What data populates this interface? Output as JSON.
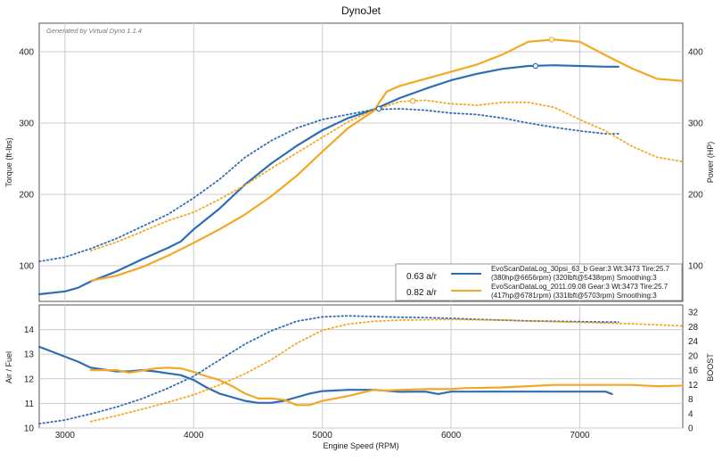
{
  "chart_data": {
    "type": "line",
    "title": "DynoJet",
    "watermark": "Generated by Virtual Dyno 1.1.4",
    "xlabel": "Engine Speed (RPM)",
    "xlim": [
      2800,
      7800
    ],
    "x_ticks": [
      3000,
      4000,
      5000,
      6000,
      7000
    ],
    "colors": {
      "blue": "#2e6db4",
      "orange": "#f3a823",
      "grid": "#cccccc"
    },
    "top_panel": {
      "ylabel_left": "Torque (ft-lbs)",
      "ylabel_right": "Power (HP)",
      "ylim": [
        50,
        440
      ],
      "y_ticks": [
        100,
        200,
        300,
        400
      ],
      "ar_labels": [
        "0.63 a/r",
        "0.82 a/r"
      ],
      "legend": [
        {
          "line1": "EvoScanDataLog_30psi_63_b Gear:3 Wt:3473 Tire:25.7",
          "line2": "(380hp@6656rpm) (320lbft@5438rpm) Smoothing:3",
          "color": "blue"
        },
        {
          "line1": "EvoScanDataLog_2011.09.08 Gear:3 Wt:3473 Tire:25.7",
          "line2": "(417hp@6781rpm) (331lbft@5703rpm) Smoothing:3",
          "color": "orange"
        }
      ],
      "series": [
        {
          "name": "Power 0.63 a/r",
          "color": "blue",
          "dash": false,
          "x": [
            2800,
            3000,
            3100,
            3200,
            3400,
            3600,
            3800,
            3900,
            4000,
            4200,
            4400,
            4600,
            4800,
            5000,
            5200,
            5400,
            5600,
            5800,
            6000,
            6200,
            6400,
            6600,
            6800,
            7000,
            7200,
            7300
          ],
          "y": [
            60,
            64,
            69,
            78,
            92,
            109,
            125,
            134,
            151,
            180,
            214,
            243,
            268,
            290,
            307,
            319,
            335,
            348,
            360,
            369,
            376,
            380,
            381,
            380,
            379,
            379
          ]
        },
        {
          "name": "Power 0.82 a/r",
          "color": "orange",
          "dash": false,
          "x": [
            3200,
            3400,
            3600,
            3800,
            4000,
            4200,
            4400,
            4600,
            4800,
            5000,
            5200,
            5400,
            5450,
            5500,
            5600,
            5800,
            6000,
            6200,
            6400,
            6600,
            6800,
            7000,
            7200,
            7400,
            7600,
            7800
          ],
          "y": [
            79,
            86,
            98,
            114,
            132,
            151,
            172,
            197,
            226,
            260,
            293,
            317,
            331,
            344,
            352,
            362,
            372,
            382,
            396,
            414,
            417,
            414,
            395,
            377,
            362,
            359
          ]
        },
        {
          "name": "Torque 0.63 a/r",
          "color": "blue",
          "dash": true,
          "x": [
            2800,
            3000,
            3200,
            3400,
            3600,
            3800,
            4000,
            4200,
            4400,
            4600,
            4800,
            5000,
            5200,
            5400,
            5600,
            5800,
            6000,
            6200,
            6400,
            6600,
            6800,
            7000,
            7200,
            7300
          ],
          "y": [
            106,
            112,
            124,
            138,
            155,
            172,
            195,
            221,
            252,
            275,
            293,
            305,
            312,
            319,
            320,
            318,
            314,
            312,
            307,
            300,
            294,
            289,
            285,
            285
          ]
        },
        {
          "name": "Torque 0.82 a/r",
          "color": "orange",
          "dash": true,
          "x": [
            3200,
            3400,
            3600,
            3800,
            4000,
            4200,
            4400,
            4600,
            4800,
            5000,
            5200,
            5400,
            5600,
            5800,
            6000,
            6200,
            6400,
            6600,
            6800,
            7000,
            7200,
            7400,
            7600,
            7800
          ],
          "y": [
            121,
            133,
            148,
            163,
            175,
            193,
            213,
            236,
            258,
            280,
            302,
            318,
            330,
            332,
            327,
            325,
            329,
            329,
            322,
            305,
            289,
            268,
            252,
            246
          ]
        }
      ],
      "markers": [
        {
          "series": "Power 0.63 a/r",
          "x": 6656,
          "y": 380
        },
        {
          "series": "Power 0.82 a/r",
          "x": 6781,
          "y": 417
        },
        {
          "series": "Torque 0.63 a/r",
          "x": 5438,
          "y": 320
        },
        {
          "series": "Torque 0.82 a/r",
          "x": 5703,
          "y": 331
        }
      ]
    },
    "bottom_panel": {
      "ylabel_left": "Air / Fuel",
      "ylabel_right": "BOOST",
      "ylim_left": [
        10,
        15
      ],
      "y_ticks_left": [
        10,
        11,
        12,
        13,
        14
      ],
      "ylim_right": [
        0,
        34
      ],
      "y_ticks_right": [
        0,
        4,
        8,
        12,
        16,
        20,
        24,
        28,
        32
      ],
      "series": [
        {
          "name": "AFR 0.63 a/r",
          "color": "blue",
          "dash": false,
          "axis": "left",
          "x": [
            2800,
            2900,
            3000,
            3100,
            3200,
            3400,
            3500,
            3600,
            3700,
            3800,
            3900,
            4000,
            4100,
            4200,
            4300,
            4400,
            4500,
            4600,
            4700,
            4800,
            4900,
            5000,
            5200,
            5400,
            5600,
            5800,
            5900,
            6000,
            6200,
            6400,
            6600,
            6800,
            7000,
            7200,
            7250
          ],
          "y": [
            13.3,
            13.1,
            12.9,
            12.7,
            12.45,
            12.3,
            12.3,
            12.35,
            12.3,
            12.22,
            12.15,
            11.95,
            11.65,
            11.4,
            11.25,
            11.1,
            11.02,
            11.02,
            11.1,
            11.25,
            11.4,
            11.5,
            11.55,
            11.55,
            11.47,
            11.48,
            11.38,
            11.48,
            11.48,
            11.48,
            11.48,
            11.48,
            11.48,
            11.48,
            11.38
          ]
        },
        {
          "name": "AFR 0.82 a/r",
          "color": "orange",
          "dash": false,
          "axis": "left",
          "x": [
            3200,
            3400,
            3500,
            3700,
            3800,
            3900,
            4000,
            4100,
            4200,
            4300,
            4400,
            4500,
            4600,
            4700,
            4800,
            4900,
            5000,
            5200,
            5400,
            5500,
            5600,
            5800,
            6000,
            6100,
            6400,
            6600,
            6800,
            7000,
            7200,
            7400,
            7600,
            7800
          ],
          "y": [
            12.35,
            12.35,
            12.25,
            12.42,
            12.45,
            12.42,
            12.28,
            12.1,
            11.95,
            11.7,
            11.4,
            11.2,
            11.2,
            11.15,
            10.93,
            10.93,
            11.1,
            11.3,
            11.55,
            11.52,
            11.55,
            11.58,
            11.58,
            11.62,
            11.65,
            11.7,
            11.75,
            11.75,
            11.75,
            11.75,
            11.7,
            11.72
          ]
        },
        {
          "name": "Boost 0.63 a/r",
          "color": "blue",
          "dash": true,
          "axis": "right",
          "x": [
            2800,
            3000,
            3200,
            3400,
            3600,
            3800,
            4000,
            4200,
            4400,
            4600,
            4800,
            5000,
            5200,
            5400,
            5600,
            5800,
            6000,
            6200,
            6400,
            6600,
            6800,
            7000,
            7200,
            7300
          ],
          "y": [
            1.2,
            2.2,
            3.9,
            5.8,
            8.1,
            11,
            14.3,
            18.8,
            23.2,
            26.8,
            29.5,
            30.7,
            31,
            30.8,
            30.6,
            30.5,
            30.3,
            30,
            29.8,
            29.6,
            29.5,
            29.4,
            29.3,
            29.3
          ]
        },
        {
          "name": "Boost 0.82 a/r",
          "color": "orange",
          "dash": true,
          "axis": "right",
          "x": [
            3200,
            3400,
            3600,
            3800,
            4000,
            4200,
            4400,
            4600,
            4800,
            5000,
            5200,
            5400,
            5600,
            5800,
            6000,
            6200,
            6400,
            6600,
            6800,
            7000,
            7200,
            7400,
            7600,
            7800
          ],
          "y": [
            1.8,
            3.4,
            5.2,
            7.1,
            9.2,
            11.9,
            15,
            18.8,
            23.4,
            27,
            28.7,
            29.5,
            29.8,
            29.9,
            30,
            29.9,
            29.8,
            29.6,
            29.4,
            29.2,
            29,
            28.8,
            28.5,
            28.2
          ]
        }
      ]
    }
  }
}
